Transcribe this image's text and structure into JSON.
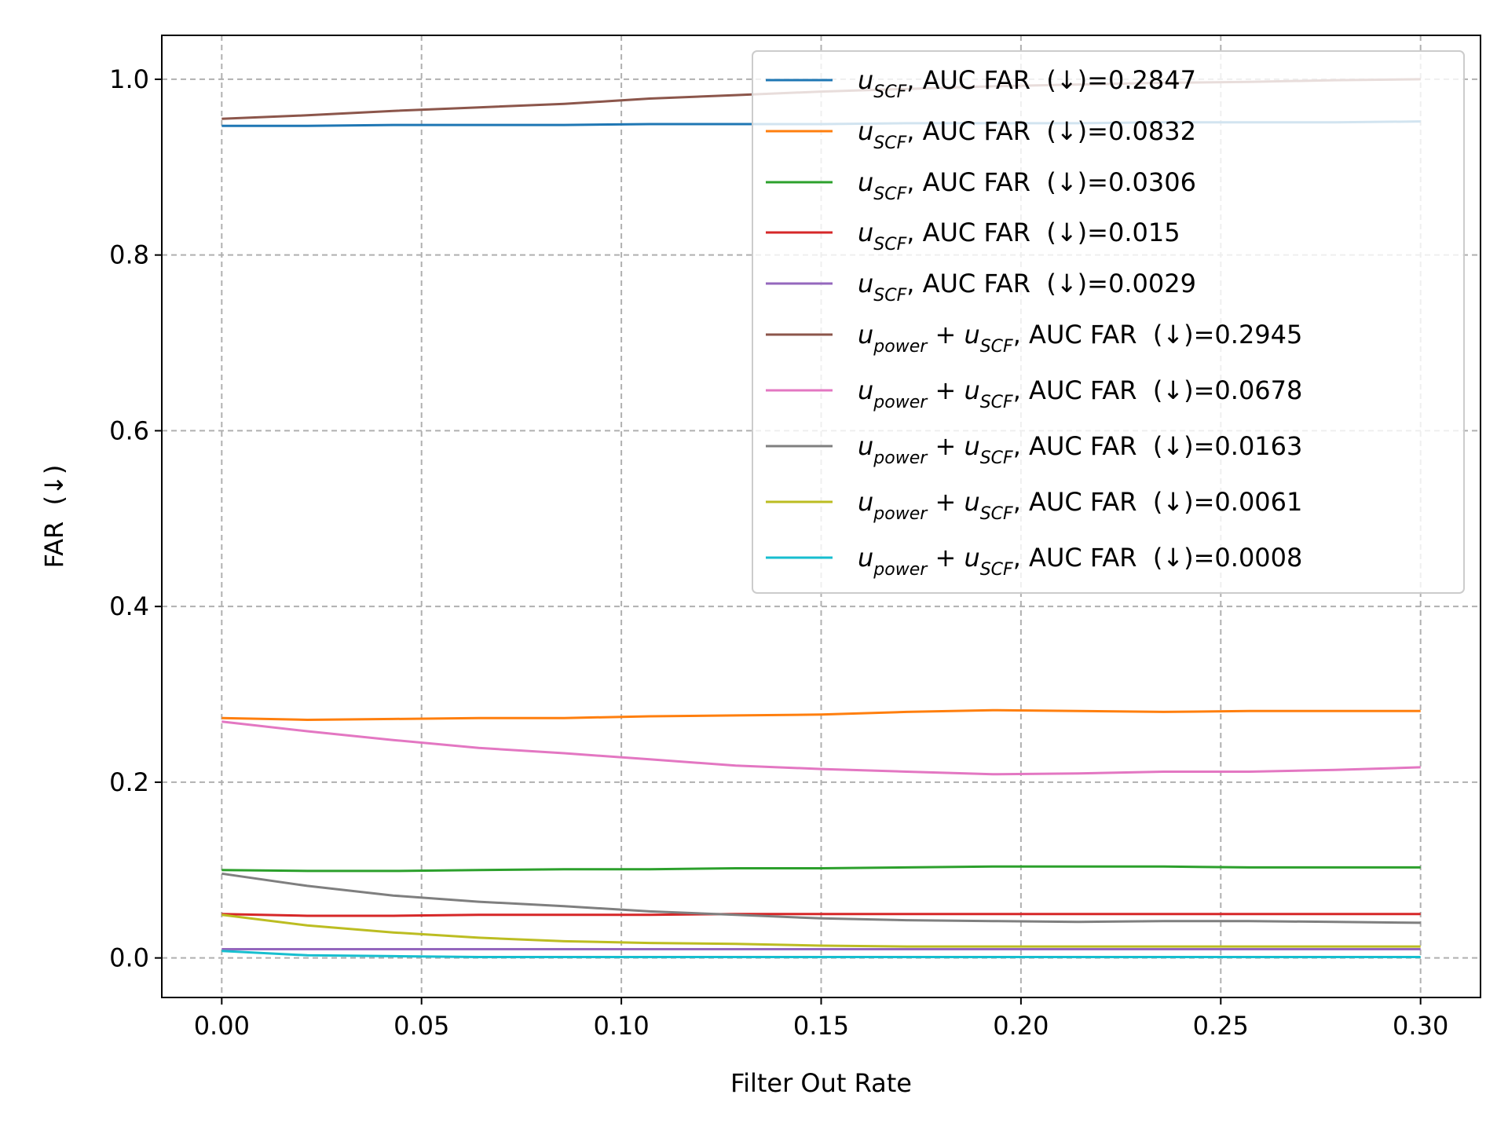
{
  "chart_data": {
    "type": "line",
    "title": "",
    "xlabel": "Filter Out Rate",
    "ylabel": "FAR  (↓)",
    "xlim": [
      -0.015,
      0.315
    ],
    "ylim": [
      -0.045,
      1.05
    ],
    "xticks": [
      0.0,
      0.05,
      0.1,
      0.15,
      0.2,
      0.25,
      0.3
    ],
    "xtick_labels": [
      "0.00",
      "0.05",
      "0.10",
      "0.15",
      "0.20",
      "0.25",
      "0.30"
    ],
    "yticks": [
      0.0,
      0.2,
      0.4,
      0.6,
      0.8,
      1.0
    ],
    "ytick_labels": [
      "0.0",
      "0.2",
      "0.4",
      "0.6",
      "0.8",
      "1.0"
    ],
    "grid": true,
    "legend_position": "top-right",
    "x": [
      0.0,
      0.0214,
      0.0429,
      0.0643,
      0.0857,
      0.1071,
      0.1286,
      0.15,
      0.1714,
      0.1929,
      0.2143,
      0.2357,
      0.2571,
      0.2786,
      0.3
    ],
    "series": [
      {
        "color": "#1f77b4",
        "label_main": "u",
        "label_sub": "SCF",
        "label_rest": ", AUC FAR  (↓)=0.2847",
        "values": [
          0.947,
          0.947,
          0.948,
          0.948,
          0.948,
          0.949,
          0.949,
          0.949,
          0.95,
          0.95,
          0.95,
          0.951,
          0.951,
          0.951,
          0.952
        ]
      },
      {
        "color": "#ff7f0e",
        "label_main": "u",
        "label_sub": "SCF",
        "label_rest": ", AUC FAR  (↓)=0.0832",
        "values": [
          0.273,
          0.271,
          0.272,
          0.273,
          0.273,
          0.275,
          0.276,
          0.277,
          0.28,
          0.282,
          0.281,
          0.28,
          0.281,
          0.281,
          0.281
        ]
      },
      {
        "color": "#2ca02c",
        "label_main": "u",
        "label_sub": "SCF",
        "label_rest": ", AUC FAR  (↓)=0.0306",
        "values": [
          0.1,
          0.099,
          0.099,
          0.1,
          0.101,
          0.101,
          0.102,
          0.102,
          0.103,
          0.104,
          0.104,
          0.104,
          0.103,
          0.103,
          0.103
        ]
      },
      {
        "color": "#d62728",
        "label_main": "u",
        "label_sub": "SCF",
        "label_rest": ", AUC FAR  (↓)=0.015",
        "values": [
          0.05,
          0.048,
          0.048,
          0.049,
          0.049,
          0.049,
          0.05,
          0.05,
          0.05,
          0.05,
          0.05,
          0.05,
          0.05,
          0.05,
          0.05
        ]
      },
      {
        "color": "#9467bd",
        "label_main": "u",
        "label_sub": "SCF",
        "label_rest": ", AUC FAR  (↓)=0.0029",
        "values": [
          0.01,
          0.01,
          0.01,
          0.01,
          0.01,
          0.01,
          0.01,
          0.01,
          0.01,
          0.01,
          0.01,
          0.01,
          0.01,
          0.01,
          0.01
        ]
      },
      {
        "color": "#8c564b",
        "label_main": "u",
        "label_sub": "power",
        "label_plus": " + ",
        "label_main2": "u",
        "label_sub2": "SCF",
        "label_rest": ", AUC FAR  (↓)=0.2945",
        "values": [
          0.955,
          0.959,
          0.964,
          0.968,
          0.972,
          0.978,
          0.982,
          0.986,
          0.989,
          0.992,
          0.994,
          0.996,
          0.997,
          0.999,
          1.0
        ]
      },
      {
        "color": "#e377c2",
        "label_main": "u",
        "label_sub": "power",
        "label_plus": " + ",
        "label_main2": "u",
        "label_sub2": "SCF",
        "label_rest": ", AUC FAR  (↓)=0.0678",
        "values": [
          0.269,
          0.258,
          0.248,
          0.239,
          0.233,
          0.226,
          0.219,
          0.215,
          0.212,
          0.209,
          0.21,
          0.212,
          0.212,
          0.214,
          0.217
        ]
      },
      {
        "color": "#7f7f7f",
        "label_main": "u",
        "label_sub": "power",
        "label_plus": " + ",
        "label_main2": "u",
        "label_sub2": "SCF",
        "label_rest": ", AUC FAR  (↓)=0.0163",
        "values": [
          0.096,
          0.082,
          0.071,
          0.064,
          0.059,
          0.053,
          0.049,
          0.045,
          0.043,
          0.042,
          0.041,
          0.042,
          0.042,
          0.041,
          0.04
        ]
      },
      {
        "color": "#bcbd22",
        "label_main": "u",
        "label_sub": "power",
        "label_plus": " + ",
        "label_main2": "u",
        "label_sub2": "SCF",
        "label_rest": ", AUC FAR  (↓)=0.0061",
        "values": [
          0.049,
          0.037,
          0.029,
          0.023,
          0.019,
          0.017,
          0.016,
          0.014,
          0.013,
          0.013,
          0.013,
          0.013,
          0.013,
          0.013,
          0.013
        ]
      },
      {
        "color": "#17becf",
        "label_main": "u",
        "label_sub": "power",
        "label_plus": " + ",
        "label_main2": "u",
        "label_sub2": "SCF",
        "label_rest": ", AUC FAR  (↓)=0.0008",
        "values": [
          0.008,
          0.003,
          0.002,
          0.001,
          0.001,
          0.001,
          0.001,
          0.001,
          0.001,
          0.001,
          0.001,
          0.001,
          0.001,
          0.001,
          0.001
        ]
      }
    ]
  }
}
